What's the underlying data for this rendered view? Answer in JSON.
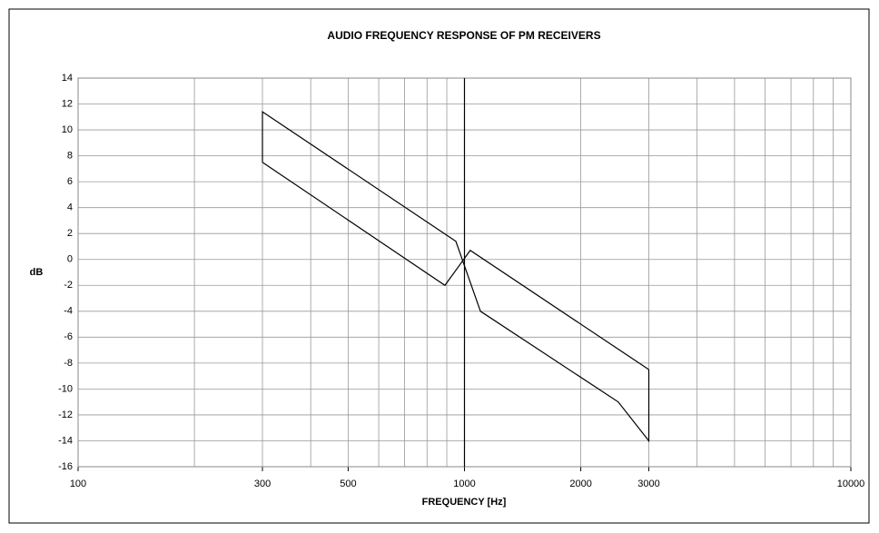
{
  "chart_data": {
    "type": "line",
    "title": "AUDIO FREQUENCY RESPONSE OF PM RECEIVERS",
    "x_label": "FREQUENCY [Hz]",
    "y_label": "dB",
    "xscale": "log",
    "xlim": [
      100,
      10000
    ],
    "xticks": [
      100,
      300,
      500,
      1000,
      2000,
      3000,
      10000
    ],
    "xgrid_minor": [
      200,
      300,
      400,
      500,
      600,
      700,
      800,
      900,
      2000,
      3000,
      4000,
      5000,
      6000,
      7000,
      8000,
      9000
    ],
    "ylim": [
      -16,
      14
    ],
    "yticks": [
      -16,
      -14,
      -12,
      -10,
      -8,
      -6,
      -4,
      -2,
      0,
      2,
      4,
      6,
      8,
      10,
      12,
      14
    ],
    "vline": 1000,
    "grid": true,
    "series": [
      {
        "color": "#000000",
        "x": [
          300,
          300,
          950,
          1100,
          2500,
          3000,
          3000
        ],
        "values": [
          7.5,
          11.4,
          1.4,
          -4,
          -11,
          -14,
          -8.5
        ]
      },
      {
        "color": "#000000",
        "x": [
          300,
          890,
          1035,
          3000
        ],
        "values": [
          7.5,
          -2,
          0.7,
          -8.5
        ]
      }
    ]
  }
}
